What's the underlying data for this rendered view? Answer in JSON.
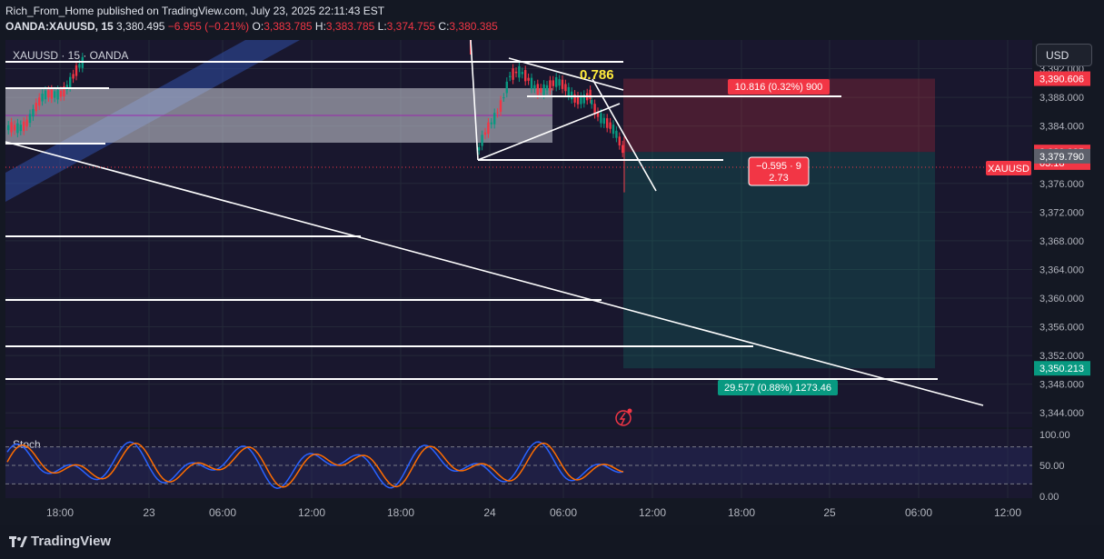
{
  "header": {
    "line1": "Rich_From_Home published on TradingView.com, July 23, 2025 22:11:43 EST",
    "symbol": "OANDA:XAUUSD, 15",
    "price": "3,380.495",
    "change": "−6.955 (−0.21%)",
    "o_label": "O:",
    "o_val": "3,383.785",
    "h_label": "H:",
    "h_val": "3,383.785",
    "l_label": "L:",
    "l_val": "3,374.755",
    "c_label": "C:",
    "c_val": "3,380.385"
  },
  "chart_label": "XAUUSD · 15 · OANDA",
  "currency_button": "USD",
  "fib_label": "0.786",
  "stoch_label": "Stoch",
  "footer_logo": "TradingView",
  "colors": {
    "background": "#141823",
    "up": "#089981",
    "down": "#f23645",
    "stop_zone": "#f23645",
    "target_zone": "#089981",
    "fib": "#ffeb3b",
    "stoch_k": "#2962ff",
    "stoch_d": "#ff6d00"
  },
  "chart_data": {
    "type": "candlestick",
    "symbol": "XAUUSD",
    "interval": "15",
    "y_axis": {
      "ylim": [
        3342,
        3396
      ],
      "ticks": [
        "3,392.000",
        "3,388.000",
        "3,384.000",
        "3,376.000",
        "3,372.000",
        "3,368.000",
        "3,364.000",
        "3,360.000",
        "3,356.000",
        "3,352.000",
        "3,348.000",
        "3,344.000"
      ],
      "tick_values": [
        3392,
        3388,
        3384,
        3376,
        3372,
        3368,
        3364,
        3360,
        3356,
        3352,
        3348,
        3344
      ]
    },
    "x_axis": {
      "ticks": [
        "18:00",
        "23",
        "06:00",
        "12:00",
        "18:00",
        "24",
        "06:00",
        "12:00",
        "18:00",
        "25",
        "06:00",
        "12:00"
      ]
    },
    "price_labels": [
      {
        "text": "3,390.606",
        "value": 3390.606,
        "color": "#f23645"
      },
      {
        "text": "3,380.385",
        "value": 3380.385,
        "color": "#f23645"
      },
      {
        "text": "03:18",
        "value": 3378.9,
        "color": "#f23645"
      },
      {
        "text": "3,379.790",
        "value": 3379.79,
        "color": "#5d606b"
      },
      {
        "text": "3,350.213",
        "value": 3350.213,
        "color": "#089981"
      }
    ],
    "symbol_tag": "XAUUSD",
    "position": {
      "type": "short",
      "entry": 3380.385,
      "stop": 3390.606,
      "target": 3350.213,
      "stop_label": "10.816 (0.32%) 900",
      "info_label_1": "−0.595 · 9",
      "info_label_2": "2.73",
      "target_label": "29.577 (0.88%) 1273.46"
    },
    "stoch": {
      "levels": [
        "100.00",
        "50.00",
        "0.00"
      ],
      "level_values": [
        100,
        50,
        0
      ]
    }
  }
}
